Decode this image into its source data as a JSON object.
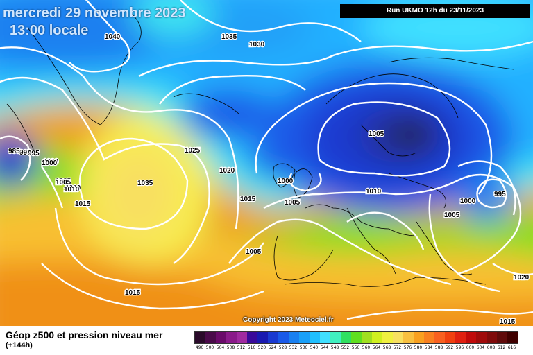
{
  "header": {
    "date_text": "mercredi 29 novembre 2023",
    "time_text": "13:00 locale",
    "run_text": "Run UKMO 12h du 23/11/2023"
  },
  "copyright": "Copyright 2023 Meteociel.fr",
  "footer": {
    "product_title": "Géop z500 et pression niveau mer",
    "lead_time": "(+144h)"
  },
  "isobar_labels": [
    "1040",
    "1035",
    "1030",
    "1025",
    "1020",
    "1015",
    "1010",
    "1005",
    "1000",
    "995",
    "985",
    "995",
    "1000",
    "1005",
    "1010",
    "1015",
    "1035",
    "1025",
    "1020",
    "1015",
    "1005",
    "1000",
    "1005",
    "1010",
    "1005",
    "1000",
    "995",
    "1005",
    "1015",
    "1015",
    "1020"
  ],
  "legend": {
    "labels": [
      "496",
      "500",
      "504",
      "508",
      "512",
      "516",
      "520",
      "524",
      "528",
      "532",
      "536",
      "540",
      "544",
      "548",
      "552",
      "556",
      "560",
      "564",
      "568",
      "572",
      "576",
      "580",
      "584",
      "588",
      "592",
      "596",
      "600",
      "604",
      "608",
      "612",
      "616"
    ],
    "colors": [
      "#2a0a2a",
      "#4a0a4a",
      "#6a0a6a",
      "#8a1a8a",
      "#a02aa0",
      "#3a0a9a",
      "#1a1ab0",
      "#1a3ad0",
      "#1a5ae8",
      "#1a80f0",
      "#1aa0f8",
      "#20c0ff",
      "#40e0ff",
      "#40f0c0",
      "#30e060",
      "#60e020",
      "#a0e020",
      "#d0f020",
      "#f0f040",
      "#f8e060",
      "#f8c040",
      "#f8a020",
      "#f88020",
      "#f86020",
      "#f04010",
      "#e02010",
      "#c00a0a",
      "#a00a0a",
      "#800a0a",
      "#600a0a",
      "#400000"
    ]
  }
}
